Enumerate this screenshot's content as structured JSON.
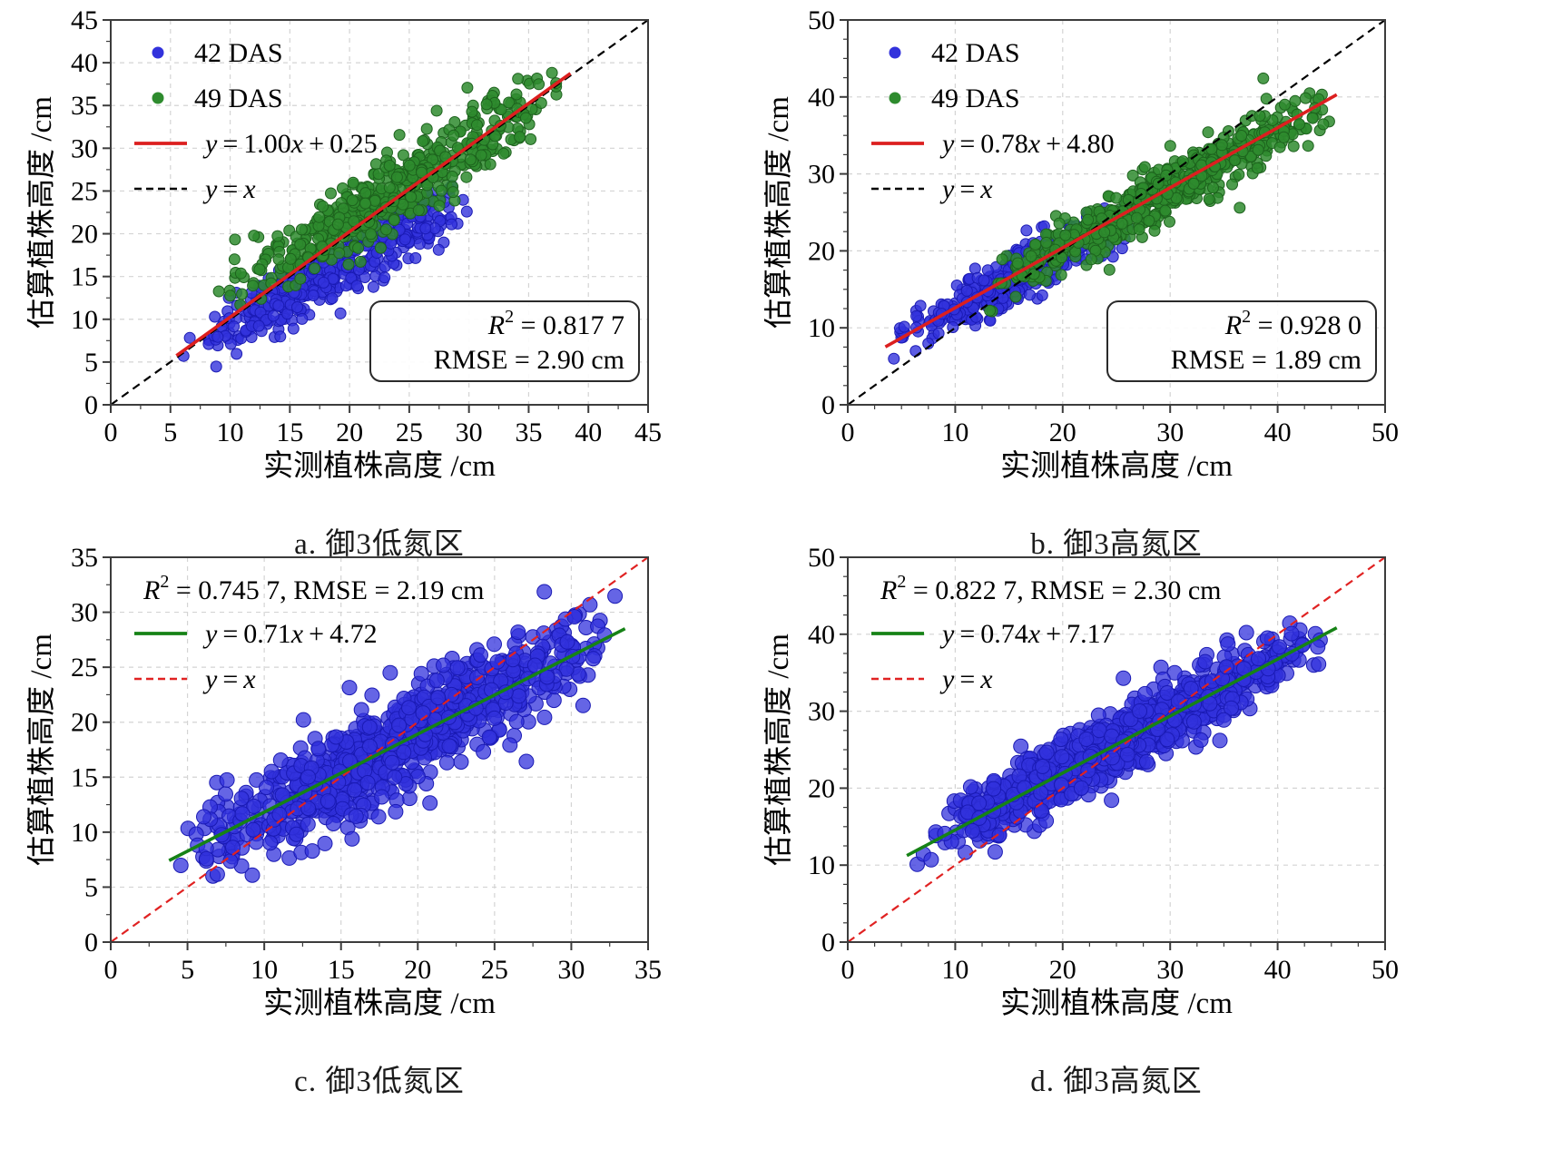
{
  "figure": {
    "background": "#ffffff",
    "axis_color": "#3c3c3c",
    "grid_color": "#d4d4d4",
    "scatter_blue": "#3232dc",
    "scatter_green": "#2e8b2e",
    "fit_red": "#dc1f1f",
    "fit_dark_green": "#168216"
  },
  "chart_data": [
    {
      "id": "a",
      "type": "scatter",
      "caption": "a. 御3低氮区",
      "xlabel": "实测植株高度 /cm",
      "ylabel": "估算植株高度 /cm",
      "xlim": [
        0,
        45
      ],
      "ylim": [
        0,
        45
      ],
      "major_tick": 5,
      "minor_tick": 2.5,
      "grid": true,
      "legend_position": "top-left",
      "legend": [
        {
          "type": "marker",
          "label": "42 DAS",
          "color": "#3232dc"
        },
        {
          "type": "marker",
          "label": "49 DAS",
          "color": "#2e8b2e"
        },
        {
          "type": "line",
          "label": "y=1.00x+0.25",
          "color": "#dc1f1f",
          "dash": "solid"
        },
        {
          "type": "line",
          "label": "y=x",
          "color": "#000000",
          "dash": "dashed"
        }
      ],
      "fit_line": {
        "equation": "y=1.00x+0.25",
        "slope": 1.0,
        "intercept": 0.25,
        "color": "#dc1f1f",
        "style": "solid",
        "x_start": 5.5,
        "x_end": 38.5
      },
      "identity_line": {
        "equation": "y=x",
        "color": "#000000",
        "style": "dashed"
      },
      "stats": {
        "r2": "0.817 7",
        "rmse": "2.90 cm",
        "boxed": true,
        "position": "bottom-right"
      },
      "series": [
        {
          "name": "42 DAS",
          "color": "#3232dc",
          "edge": "#1a1ab4",
          "n": 430,
          "x_min": 5.5,
          "x_max": 31.5,
          "trend_slope": 0.74,
          "trend_intercept": 2.0,
          "sigma": 1.9,
          "seed": 101,
          "radius": 6,
          "opacity": 0.8
        },
        {
          "name": "49 DAS",
          "color": "#2e8b2e",
          "edge": "#1d621d",
          "n": 520,
          "x_min": 8.5,
          "x_max": 38.5,
          "trend_slope": 0.85,
          "trend_intercept": 5.0,
          "sigma": 2.0,
          "seed": 202,
          "radius": 6,
          "opacity": 0.85
        }
      ]
    },
    {
      "id": "b",
      "type": "scatter",
      "caption": "b. 御3高氮区",
      "xlabel": "实测植株高度 /cm",
      "ylabel": "估算植株高度 /cm",
      "xlim": [
        0,
        50
      ],
      "ylim": [
        0,
        50
      ],
      "major_tick": 10,
      "minor_tick": 2.5,
      "grid": true,
      "legend_position": "top-left",
      "legend": [
        {
          "type": "marker",
          "label": "42 DAS",
          "color": "#3232dc"
        },
        {
          "type": "marker",
          "label": "49 DAS",
          "color": "#2e8b2e"
        },
        {
          "type": "line",
          "label": "y=0.78x+4.80",
          "color": "#dc1f1f",
          "dash": "solid"
        },
        {
          "type": "line",
          "label": "y=x",
          "color": "#000000",
          "dash": "dashed"
        }
      ],
      "fit_line": {
        "equation": "y=0.78x+4.80",
        "slope": 0.78,
        "intercept": 4.8,
        "color": "#dc1f1f",
        "style": "solid",
        "x_start": 3.5,
        "x_end": 45.5
      },
      "identity_line": {
        "equation": "y=x",
        "color": "#000000",
        "style": "dashed"
      },
      "stats": {
        "r2": "0.928 0",
        "rmse": "1.89 cm",
        "boxed": true,
        "position": "bottom-right"
      },
      "series": [
        {
          "name": "42 DAS",
          "color": "#3232dc",
          "edge": "#1a1ab4",
          "n": 380,
          "x_min": 4.0,
          "x_max": 27.5,
          "trend_slope": 0.7,
          "trend_intercept": 5.6,
          "sigma": 1.6,
          "seed": 303,
          "radius": 6,
          "opacity": 0.8
        },
        {
          "name": "49 DAS",
          "color": "#2e8b2e",
          "edge": "#1d621d",
          "n": 560,
          "x_min": 12.0,
          "x_max": 46.0,
          "trend_slope": 0.74,
          "trend_intercept": 5.8,
          "sigma": 1.9,
          "seed": 404,
          "radius": 6,
          "opacity": 0.85
        }
      ]
    },
    {
      "id": "c",
      "type": "scatter",
      "caption": "c. 御3低氮区",
      "xlabel": "实测植株高度 /cm",
      "ylabel": "估算植株高度 /cm",
      "xlim": [
        0,
        35
      ],
      "ylim": [
        0,
        35
      ],
      "major_tick": 5,
      "minor_tick": 2.5,
      "grid": true,
      "legend_position": "top-left",
      "legend": [
        {
          "type": "stats"
        },
        {
          "type": "line",
          "label": "y=0.71x+4.72",
          "color": "#168216",
          "dash": "solid"
        },
        {
          "type": "line",
          "label": "y=x",
          "color": "#e02222",
          "dash": "dashed"
        }
      ],
      "fit_line": {
        "equation": "y=0.71x+4.72",
        "slope": 0.71,
        "intercept": 4.72,
        "color": "#168216",
        "style": "solid",
        "x_start": 3.8,
        "x_end": 33.5
      },
      "identity_line": {
        "equation": "y=x",
        "color": "#e02222",
        "style": "dashed"
      },
      "stats": {
        "r2": "0.745 7",
        "rmse": "2.19 cm",
        "boxed": false,
        "position": "top-left"
      },
      "series": [
        {
          "name": "42 DAS",
          "color": "#3232dc",
          "edge": "#1a1ab4",
          "n": 850,
          "x_min": 3.8,
          "x_max": 33.5,
          "trend_slope": 0.71,
          "trend_intercept": 4.72,
          "sigma": 2.2,
          "seed": 505,
          "radius": 8,
          "opacity": 0.75
        }
      ]
    },
    {
      "id": "d",
      "type": "scatter",
      "caption": "d. 御3高氮区",
      "xlabel": "实测植株高度 /cm",
      "ylabel": "估算植株高度 /cm",
      "xlim": [
        0,
        50
      ],
      "ylim": [
        0,
        50
      ],
      "major_tick": 10,
      "minor_tick": 2.5,
      "grid": true,
      "legend_position": "top-left",
      "legend": [
        {
          "type": "stats"
        },
        {
          "type": "line",
          "label": "y=0.74x+7.17",
          "color": "#168216",
          "dash": "solid"
        },
        {
          "type": "line",
          "label": "y=x",
          "color": "#e02222",
          "dash": "dashed"
        }
      ],
      "fit_line": {
        "equation": "y=0.74x+7.17",
        "slope": 0.74,
        "intercept": 7.17,
        "color": "#168216",
        "style": "solid",
        "x_start": 5.5,
        "x_end": 45.5
      },
      "identity_line": {
        "equation": "y=x",
        "color": "#e02222",
        "style": "dashed"
      },
      "stats": {
        "r2": "0.822 7",
        "rmse": "2.30 cm",
        "boxed": false,
        "position": "top-left"
      },
      "series": [
        {
          "name": "42 DAS",
          "color": "#3232dc",
          "edge": "#1a1ab4",
          "n": 850,
          "x_min": 5.5,
          "x_max": 45.5,
          "trend_slope": 0.74,
          "trend_intercept": 7.17,
          "sigma": 2.1,
          "seed": 606,
          "radius": 8,
          "opacity": 0.75
        }
      ]
    }
  ]
}
